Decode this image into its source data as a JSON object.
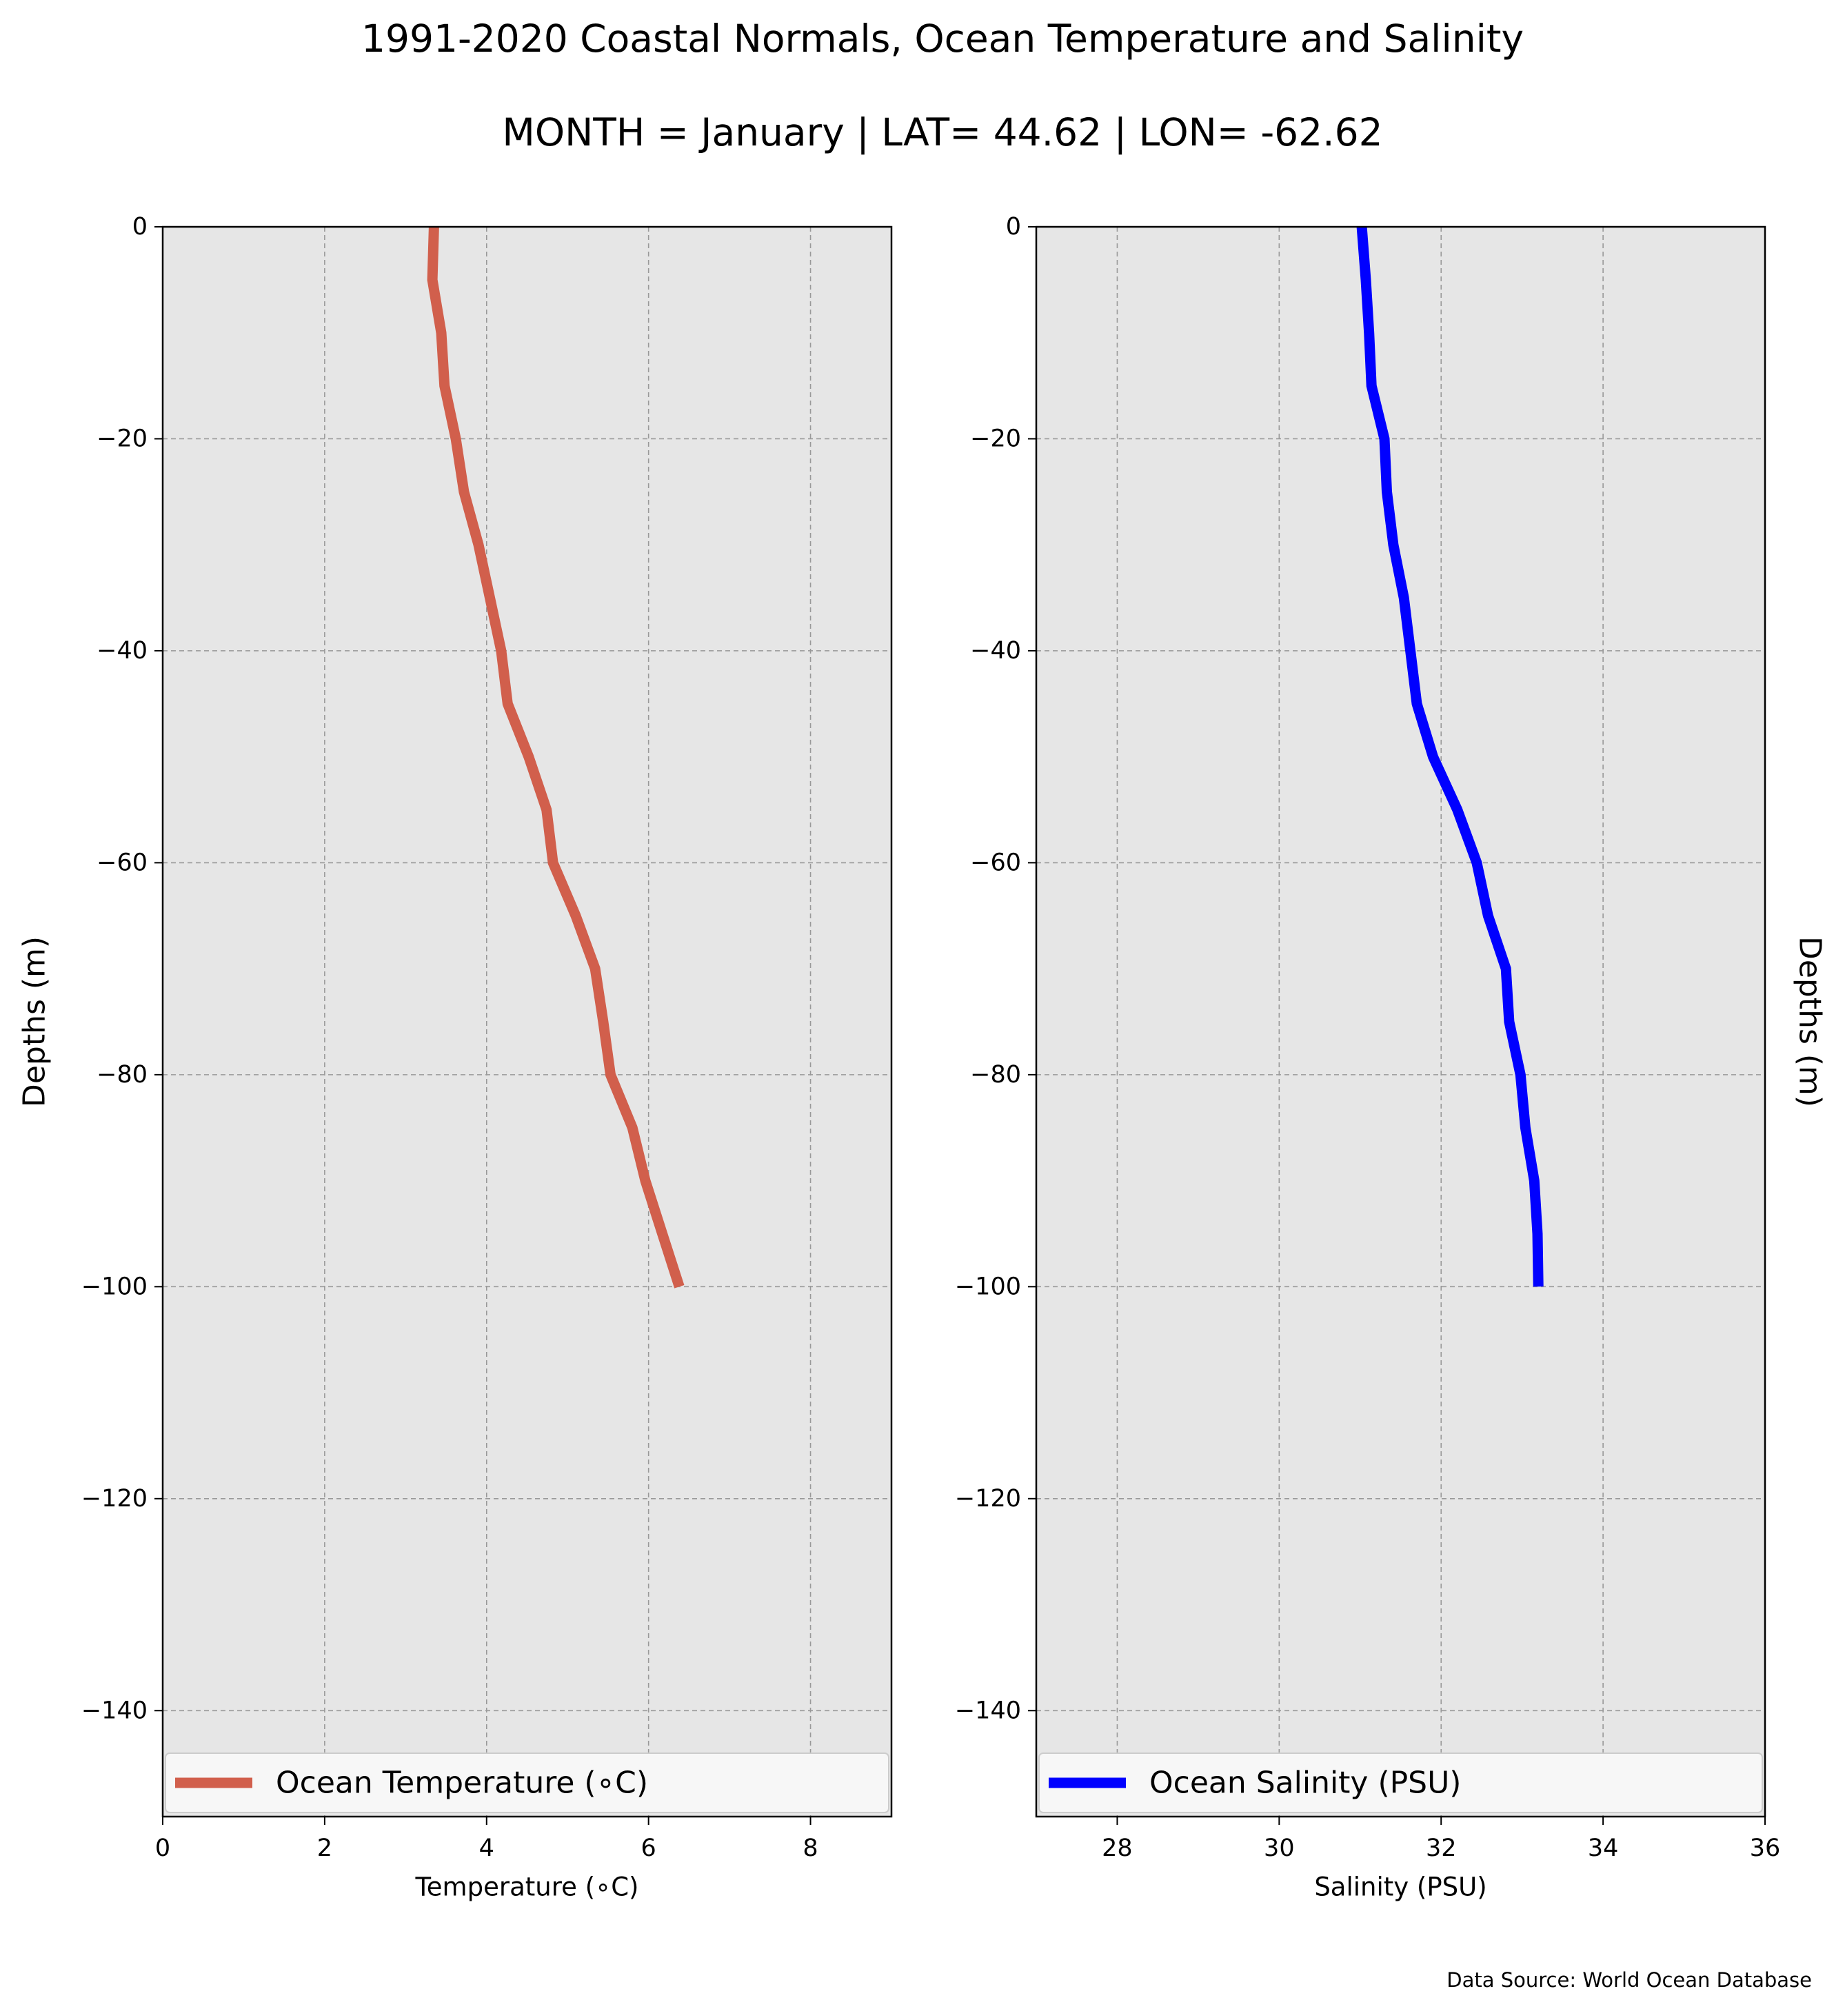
{
  "figure": {
    "title": "1991-2020 Coastal Normals, Ocean Temperature and Salinity",
    "subtitle": "MONTH = January | LAT= 44.62 | LON= -62.62",
    "source": "Data Source: World Ocean Database",
    "background": "#ffffff",
    "axes_face": "#e6e6e6",
    "grid_color": "#999999",
    "legend_face": "#f7f7f7"
  },
  "chart_data": [
    {
      "type": "line",
      "xlabel": "Temperature (∘C)",
      "ylabel": "Depths (m)",
      "xlim": [
        0,
        9
      ],
      "ylim": [
        -150,
        0
      ],
      "xticks": [
        0,
        2,
        4,
        6,
        8
      ],
      "xtick_labels": [
        "0",
        "2",
        "4",
        "6",
        "8"
      ],
      "yticks": [
        0,
        -20,
        -40,
        -60,
        -80,
        -100,
        -120,
        -140
      ],
      "ytick_labels": [
        "0",
        "−20",
        "−40",
        "−60",
        "−80",
        "−100",
        "−120",
        "−140"
      ],
      "grid": true,
      "legend_position": "bottom",
      "series": [
        {
          "name": "Ocean Temperature (∘C)",
          "color": "#d15f4c",
          "x": [
            3.35,
            3.33,
            3.44,
            3.48,
            3.62,
            3.72,
            3.9,
            4.04,
            4.18,
            4.26,
            4.52,
            4.74,
            4.82,
            5.1,
            5.34,
            5.44,
            5.53,
            5.8,
            5.96,
            6.17,
            6.38
          ],
          "y": [
            0,
            -5,
            -10,
            -15,
            -20,
            -25,
            -30,
            -35,
            -40,
            -45,
            -50,
            -55,
            -60,
            -65,
            -70,
            -75,
            -80,
            -85,
            -90,
            -95,
            -100
          ]
        }
      ]
    },
    {
      "type": "line",
      "xlabel": "Salinity (PSU)",
      "ylabel": "Depths (m)",
      "xlim": [
        27,
        36
      ],
      "ylim": [
        -150,
        0
      ],
      "xticks": [
        28,
        30,
        32,
        34,
        36
      ],
      "xtick_labels": [
        "28",
        "30",
        "32",
        "34",
        "36"
      ],
      "yticks": [
        0,
        -20,
        -40,
        -60,
        -80,
        -100,
        -120,
        -140
      ],
      "ytick_labels": [
        "0",
        "−20",
        "−40",
        "−60",
        "−80",
        "−100",
        "−120",
        "−140"
      ],
      "grid": true,
      "legend_position": "bottom",
      "series": [
        {
          "name": "Ocean Salinity (PSU)",
          "color": "#0000ff",
          "x": [
            31.02,
            31.07,
            31.11,
            31.14,
            31.3,
            31.33,
            31.41,
            31.54,
            31.62,
            31.7,
            31.9,
            32.2,
            32.44,
            32.58,
            32.8,
            32.84,
            32.98,
            33.04,
            33.15,
            33.19,
            33.2
          ],
          "y": [
            0,
            -5,
            -10,
            -15,
            -20,
            -25,
            -30,
            -35,
            -40,
            -45,
            -50,
            -55,
            -60,
            -65,
            -70,
            -75,
            -80,
            -85,
            -90,
            -95,
            -100
          ]
        }
      ]
    }
  ]
}
